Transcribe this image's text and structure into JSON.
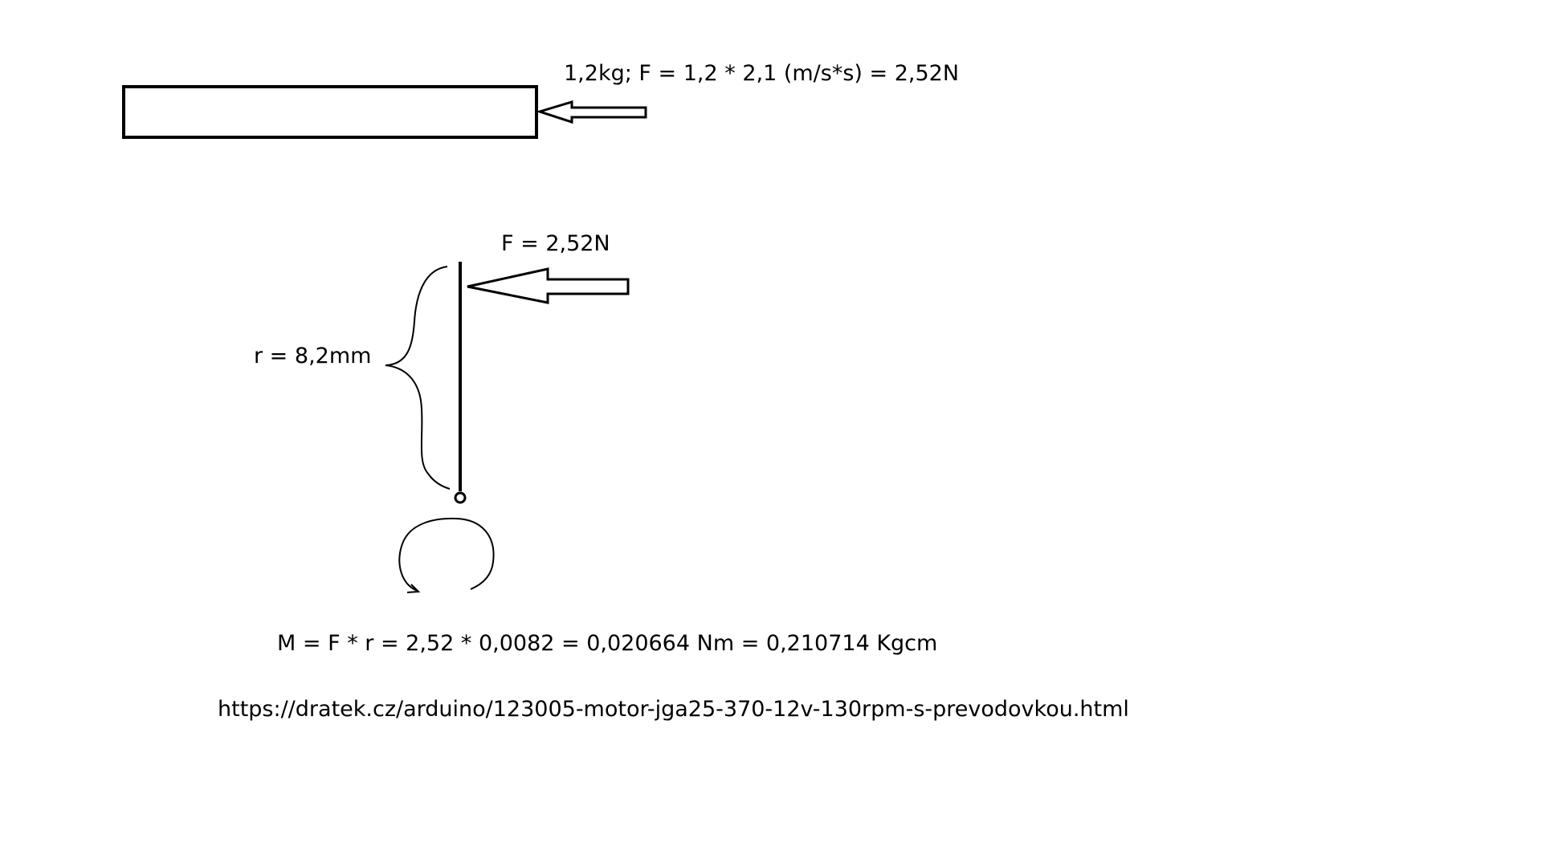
{
  "labels": {
    "force_calculation": "1,2kg; F = 1,2 * 2,1 (m/s*s) = 2,52N",
    "force": "F = 2,52N",
    "radius": "r = 8,2mm",
    "torque": "M = F * r = 2,52 * 0,0082 = 0,020664 Nm = 0,210714 Kgcm",
    "url": "https://dratek.cz/arduino/123005-motor-jga25-370-12v-130rpm-s-prevodovkou.html"
  },
  "colors": {
    "stroke": "#000000",
    "background": "#ffffff"
  }
}
